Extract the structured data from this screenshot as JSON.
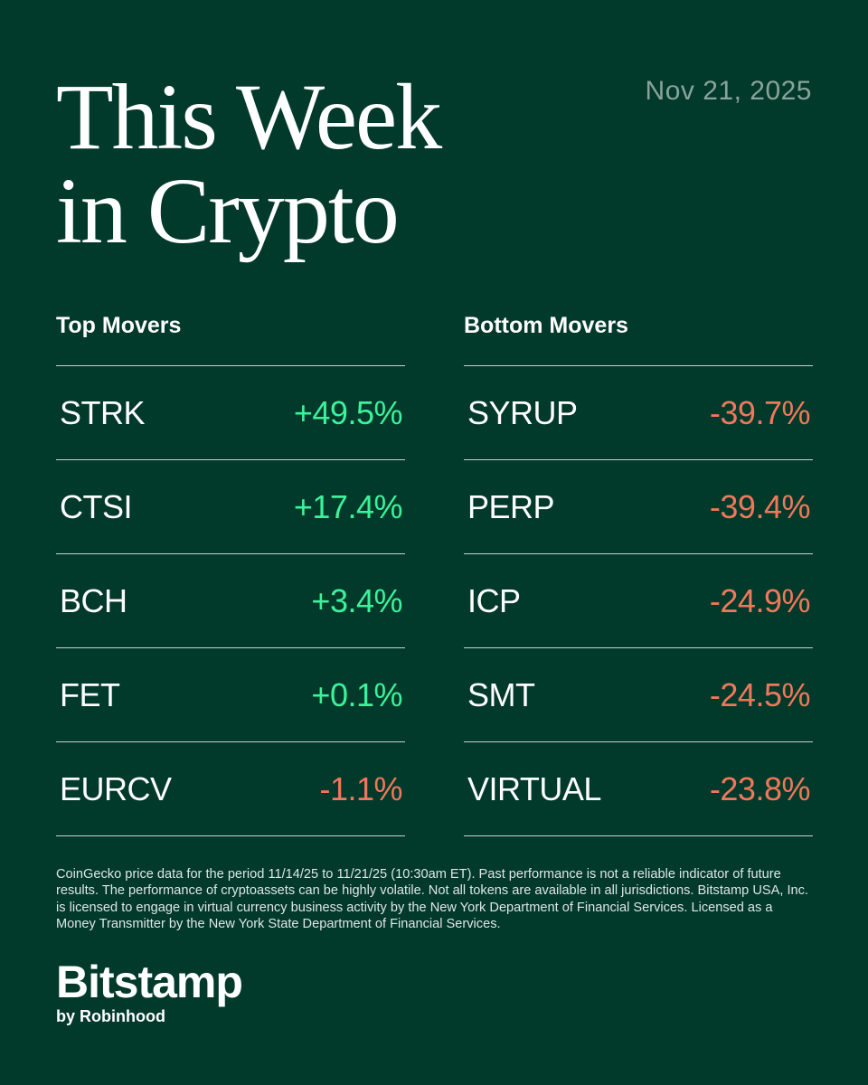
{
  "header": {
    "title_line1": "This Week",
    "title_line2": "in Crypto",
    "date": "Nov 21, 2025"
  },
  "top_movers": {
    "heading": "Top Movers",
    "rows": [
      {
        "symbol": "STRK",
        "change": "+49.5%",
        "direction": "up"
      },
      {
        "symbol": "CTSI",
        "change": "+17.4%",
        "direction": "up"
      },
      {
        "symbol": "BCH",
        "change": "+3.4%",
        "direction": "up"
      },
      {
        "symbol": "FET",
        "change": "+0.1%",
        "direction": "up"
      },
      {
        "symbol": "EURCV",
        "change": "-1.1%",
        "direction": "down"
      }
    ]
  },
  "bottom_movers": {
    "heading": "Bottom Movers",
    "rows": [
      {
        "symbol": "SYRUP",
        "change": "-39.7%",
        "direction": "down"
      },
      {
        "symbol": "PERP",
        "change": "-39.4%",
        "direction": "down"
      },
      {
        "symbol": "ICP",
        "change": "-24.9%",
        "direction": "down"
      },
      {
        "symbol": "SMT",
        "change": "-24.5%",
        "direction": "down"
      },
      {
        "symbol": "VIRTUAL",
        "change": "-23.8%",
        "direction": "down"
      }
    ]
  },
  "disclaimer": "CoinGecko price data for the period 11/14/25 to 11/21/25 (10:30am ET). Past performance is not a reliable indicator of future results. The performance of cryptoassets can be highly volatile. Not all tokens are available in all jurisdictions. Bitstamp USA, Inc. is licensed to engage in virtual currency business activity by the New York Department of Financial Services. Licensed as a Money Transmitter by the New York State Department of Financial Services.",
  "brand": {
    "name": "Bitstamp",
    "tagline": "by Robinhood"
  },
  "colors": {
    "background": "#01392b",
    "positive": "#3cf29a",
    "negative": "#f0785a",
    "date": "#8aa399"
  }
}
